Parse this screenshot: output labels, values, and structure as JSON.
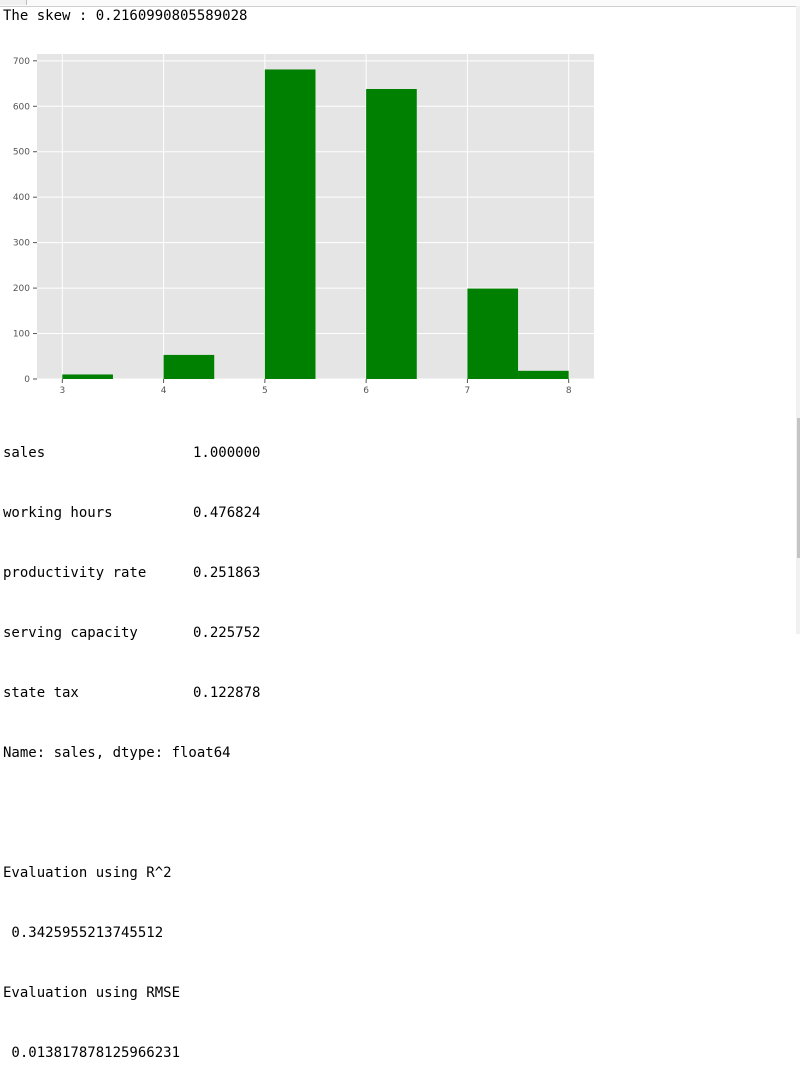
{
  "skew_line": "The skew : 0.2160990805589028",
  "chart_data": {
    "type": "bar",
    "title": "",
    "xlabel": "",
    "ylabel": "",
    "x_ticks": [
      3,
      4,
      5,
      6,
      7,
      8
    ],
    "y_ticks": [
      0,
      100,
      200,
      300,
      400,
      500,
      600,
      700
    ],
    "xlim": [
      2.75,
      8.25
    ],
    "ylim": [
      0,
      715
    ],
    "grid": true,
    "background": "#e5e5e5",
    "bar_color": "#008000",
    "bins": [
      {
        "start": 3.0,
        "end": 3.5,
        "value": 10
      },
      {
        "start": 4.0,
        "end": 4.5,
        "value": 53
      },
      {
        "start": 5.0,
        "end": 5.5,
        "value": 681
      },
      {
        "start": 6.0,
        "end": 6.5,
        "value": 638
      },
      {
        "start": 7.0,
        "end": 7.5,
        "value": 199
      },
      {
        "start": 7.5,
        "end": 8.0,
        "value": 18
      }
    ]
  },
  "correlation": {
    "rows": [
      {
        "name": "sales",
        "value": "1.000000"
      },
      {
        "name": "working hours",
        "value": "0.476824"
      },
      {
        "name": "productivity rate",
        "value": "0.251863"
      },
      {
        "name": "serving capacity",
        "value": "0.225752"
      },
      {
        "name": "state tax",
        "value": "0.122878"
      }
    ],
    "footer": "Name: sales, dtype: float64"
  },
  "evaluation": {
    "r2_label": "Evaluation using R^2",
    "r2_value": " 0.3425955213745512",
    "rmse_label": "Evaluation using RMSE",
    "rmse_value": " 0.013817878125966231"
  }
}
